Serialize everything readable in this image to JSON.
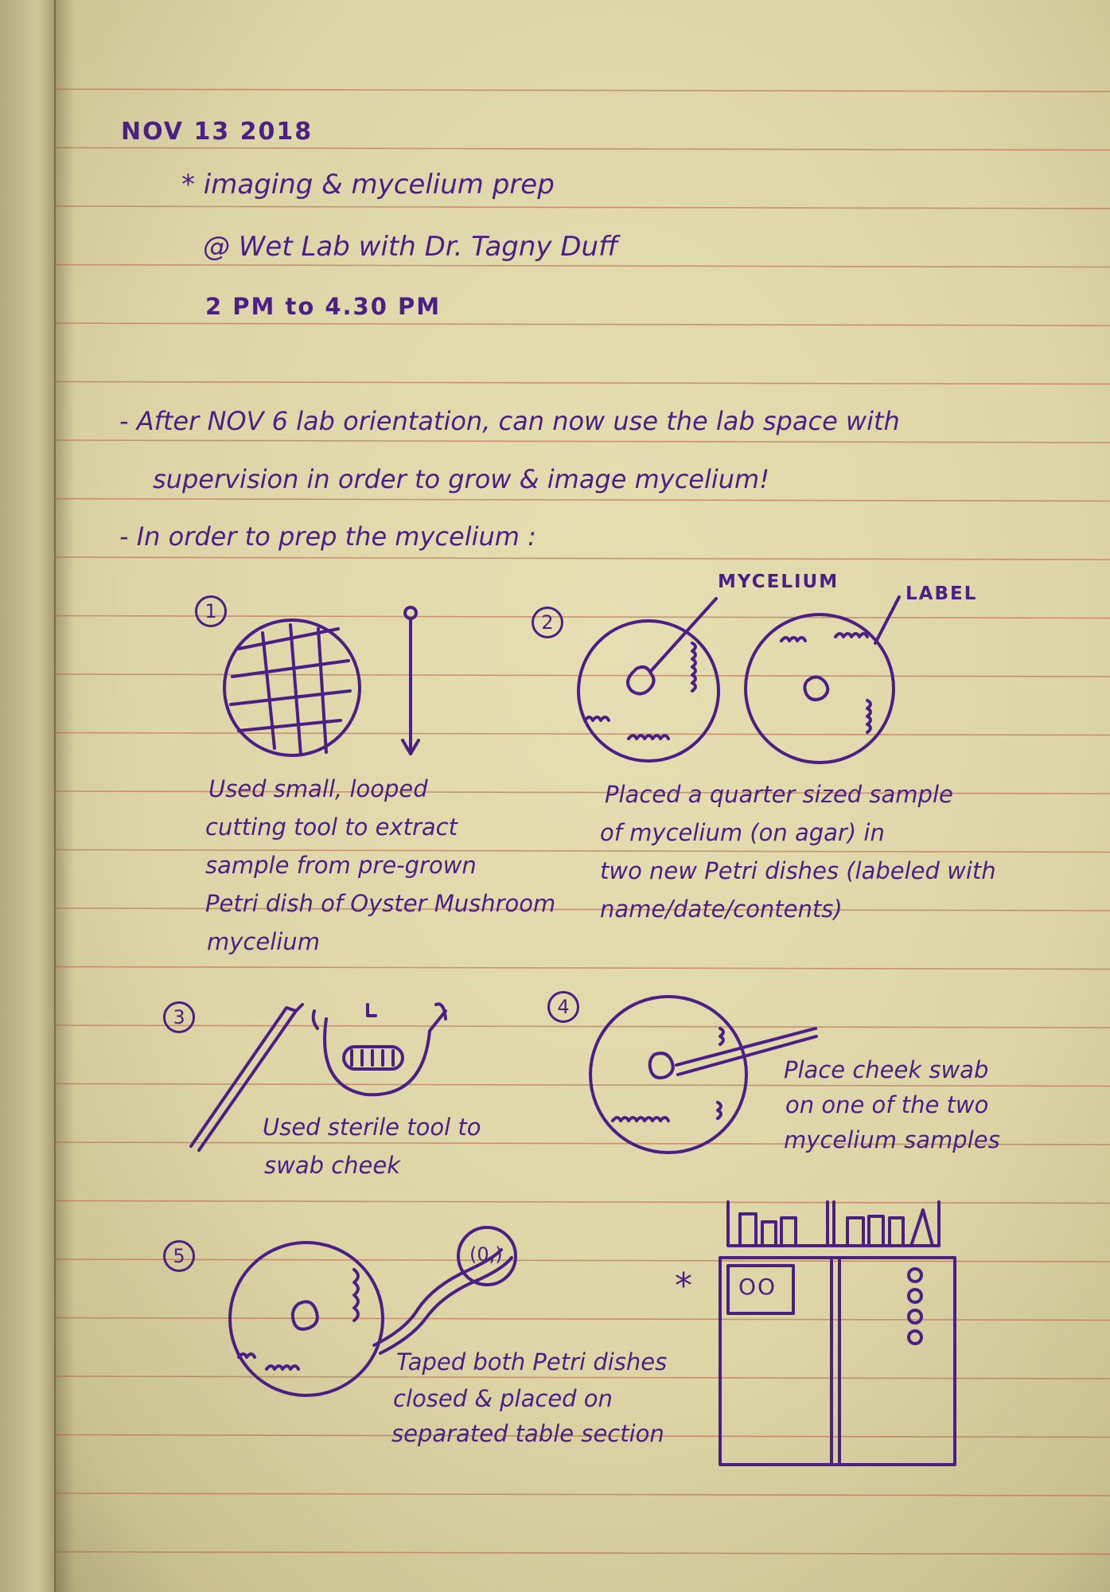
{
  "header": {
    "date": "NOV 13 2018",
    "title": "* imaging & mycelium prep",
    "location": "@ Wet Lab with Dr. Tagny Duff",
    "time": "2 PM to 4.30 PM"
  },
  "intro": {
    "line1": "- After NOV 6 lab orientation, can now use the lab space with",
    "line2": "supervision in order to grow & image mycelium!",
    "line3": "- In order to prep the mycelium :"
  },
  "steps": [
    {
      "number": "1",
      "caption": [
        "Used small, looped",
        "cutting tool to extract",
        "sample from pre-grown",
        "Petri dish of Oyster Mushroom",
        "mycelium"
      ]
    },
    {
      "number": "2",
      "labels": {
        "mycelium": "MYCELIUM",
        "label": "LABEL"
      },
      "caption": [
        "Placed a quarter sized sample",
        "of mycelium (on agar) in",
        "two new Petri dishes (labeled with",
        "name/date/contents)"
      ]
    },
    {
      "number": "3",
      "caption": [
        "Used sterile tool to",
        "swab cheek"
      ]
    },
    {
      "number": "4",
      "caption": [
        "Place cheek swab",
        "on one of the two",
        "mycelium samples"
      ]
    },
    {
      "number": "5",
      "tape_label": "(0,)",
      "caption": [
        "Taped both Petri dishes",
        "closed & placed on",
        "separated table section"
      ]
    }
  ],
  "incubator": {
    "marker": "*",
    "panel_label": "OO"
  },
  "ink_color": "#4b1f86",
  "rule_color": "#b5573c"
}
